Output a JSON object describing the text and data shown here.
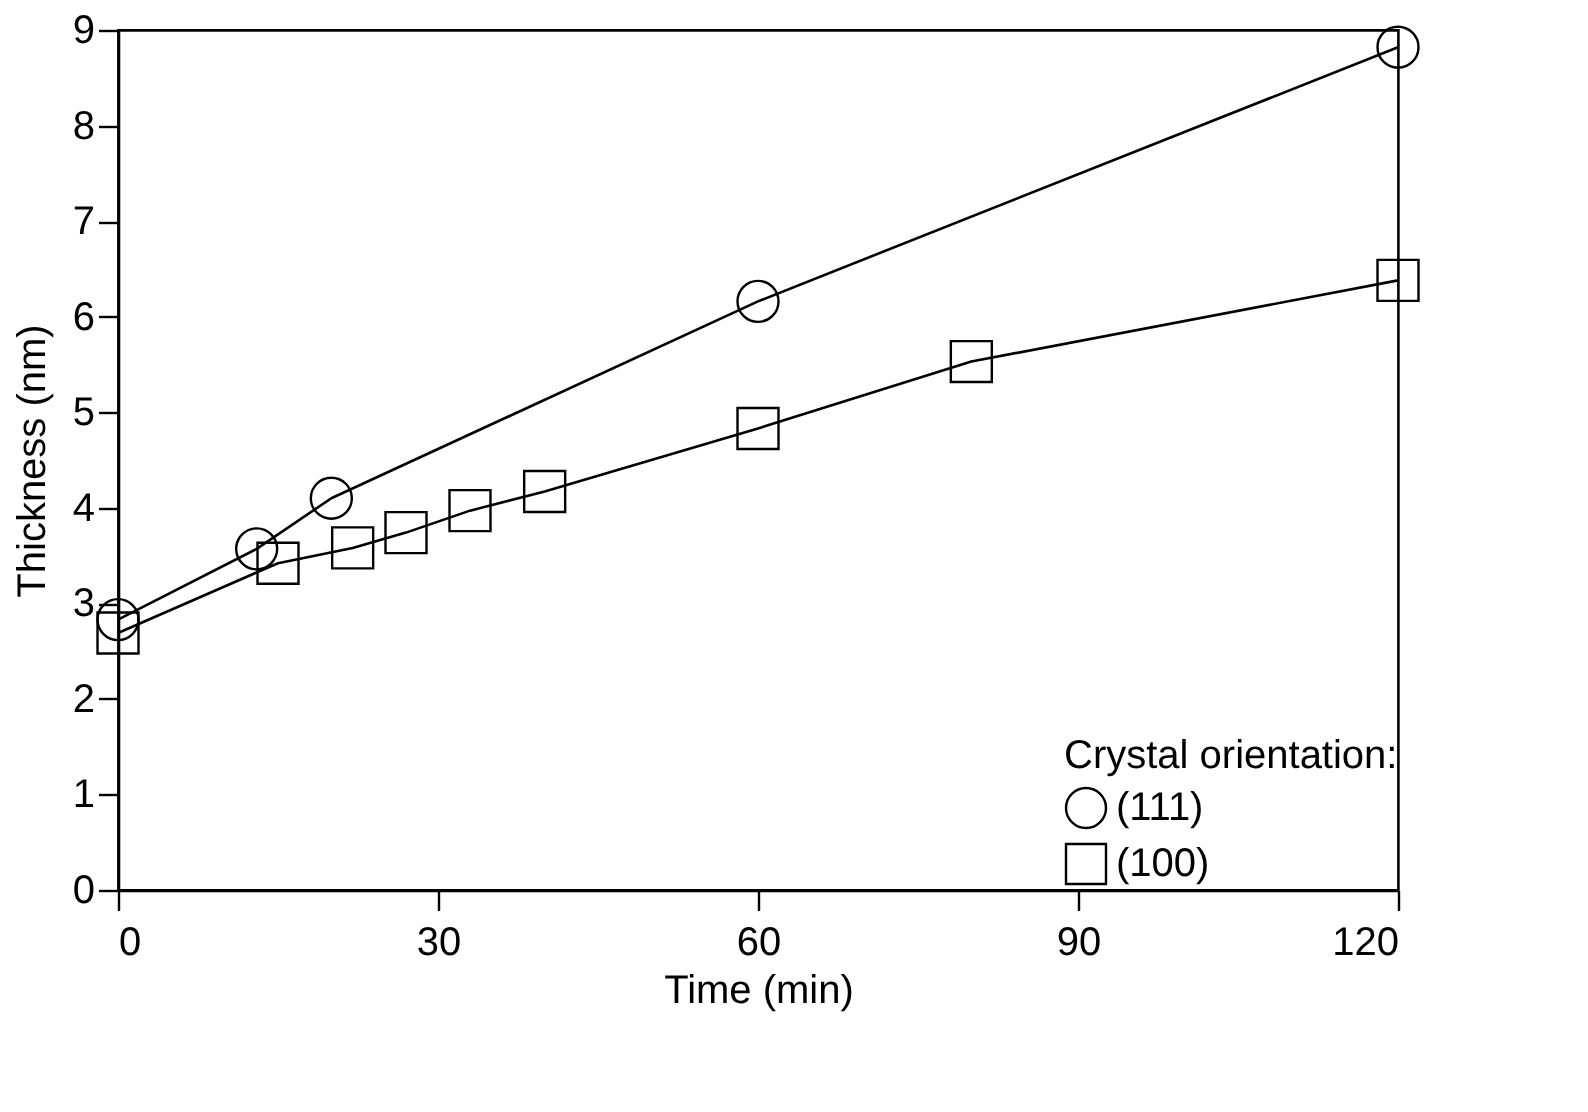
{
  "chart_data": {
    "type": "line",
    "xlabel": "Time (min)",
    "ylabel": "Thickness (nm)",
    "legend_title": "Crystal orientation:",
    "legend": "bottom right",
    "grid": false,
    "xlim": [
      0,
      120
    ],
    "xticks": [
      0,
      30,
      60,
      90,
      120
    ],
    "ylim": [
      0,
      9
    ],
    "yticks": [
      0,
      1,
      2,
      3,
      4,
      5,
      6,
      7,
      8,
      9
    ],
    "series": [
      {
        "name": "(111)",
        "color": "#000000",
        "marker": "circle",
        "x": [
          0,
          13,
          20,
          60,
          120
        ],
        "values": [
          2.83,
          3.57,
          4.1,
          6.16,
          8.82
        ]
      },
      {
        "name": "(100)",
        "color": "#000000",
        "marker": "square",
        "x": [
          0,
          15,
          22,
          27,
          33,
          40,
          60,
          80,
          120
        ],
        "values": [
          2.69,
          3.42,
          3.58,
          3.74,
          3.97,
          4.17,
          4.83,
          5.53,
          6.38
        ]
      }
    ]
  }
}
